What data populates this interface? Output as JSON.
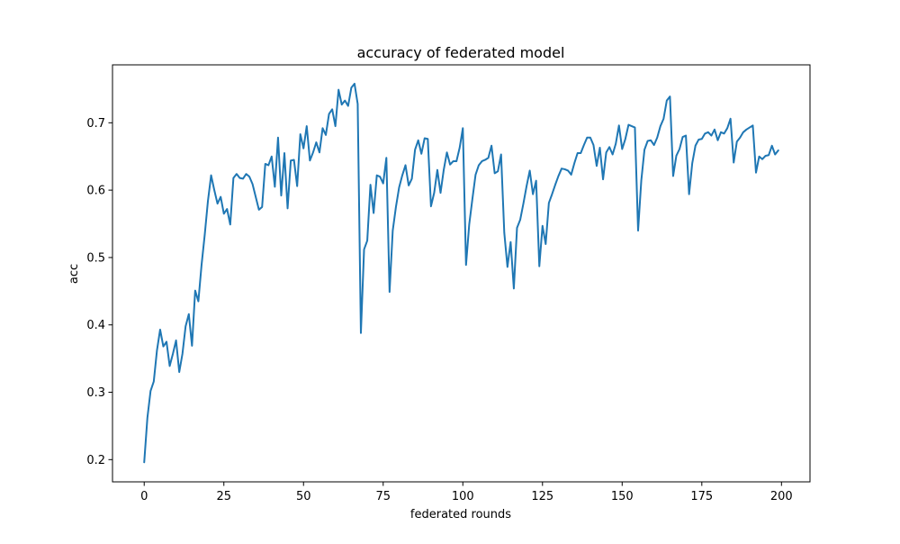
{
  "chart_data": {
    "type": "line",
    "title": "accuracy of federated model",
    "xlabel": "federated rounds",
    "ylabel": "acc",
    "xlim": [
      -9.95,
      208.95
    ],
    "ylim": [
      0.167,
      0.786
    ],
    "xticks": [
      0,
      25,
      50,
      75,
      100,
      125,
      150,
      175,
      200
    ],
    "yticks": [
      0.2,
      0.3,
      0.4,
      0.5,
      0.6,
      0.7
    ],
    "ytick_labels": [
      "0.2",
      "0.3",
      "0.4",
      "0.5",
      "0.6",
      "0.7"
    ],
    "grid": false,
    "line_color": "#1f77b4",
    "series": [
      {
        "values": [
          0.196,
          0.262,
          0.302,
          0.316,
          0.362,
          0.393,
          0.368,
          0.375,
          0.339,
          0.357,
          0.377,
          0.33,
          0.357,
          0.398,
          0.416,
          0.369,
          0.451,
          0.435,
          0.489,
          0.534,
          0.584,
          0.622,
          0.6,
          0.58,
          0.59,
          0.565,
          0.572,
          0.549,
          0.618,
          0.624,
          0.618,
          0.617,
          0.624,
          0.62,
          0.609,
          0.59,
          0.571,
          0.575,
          0.639,
          0.637,
          0.65,
          0.605,
          0.678,
          0.592,
          0.655,
          0.573,
          0.644,
          0.645,
          0.606,
          0.683,
          0.662,
          0.695,
          0.644,
          0.656,
          0.671,
          0.656,
          0.692,
          0.682,
          0.713,
          0.72,
          0.695,
          0.749,
          0.727,
          0.733,
          0.725,
          0.752,
          0.758,
          0.728,
          0.388,
          0.512,
          0.525,
          0.608,
          0.566,
          0.622,
          0.62,
          0.61,
          0.648,
          0.449,
          0.54,
          0.575,
          0.604,
          0.622,
          0.637,
          0.607,
          0.617,
          0.66,
          0.674,
          0.654,
          0.677,
          0.676,
          0.576,
          0.596,
          0.63,
          0.596,
          0.63,
          0.656,
          0.638,
          0.643,
          0.643,
          0.663,
          0.692,
          0.489,
          0.549,
          0.587,
          0.623,
          0.637,
          0.643,
          0.645,
          0.648,
          0.666,
          0.625,
          0.628,
          0.653,
          0.537,
          0.486,
          0.523,
          0.454,
          0.544,
          0.556,
          0.58,
          0.606,
          0.629,
          0.594,
          0.614,
          0.487,
          0.547,
          0.52,
          0.581,
          0.594,
          0.608,
          0.621,
          0.632,
          0.631,
          0.629,
          0.623,
          0.64,
          0.655,
          0.655,
          0.667,
          0.678,
          0.678,
          0.667,
          0.636,
          0.663,
          0.616,
          0.656,
          0.664,
          0.653,
          0.669,
          0.696,
          0.661,
          0.676,
          0.697,
          0.695,
          0.693,
          0.54,
          0.614,
          0.66,
          0.673,
          0.674,
          0.667,
          0.678,
          0.695,
          0.706,
          0.733,
          0.739,
          0.621,
          0.651,
          0.661,
          0.679,
          0.681,
          0.594,
          0.64,
          0.666,
          0.675,
          0.676,
          0.684,
          0.686,
          0.681,
          0.69,
          0.674,
          0.686,
          0.684,
          0.692,
          0.706,
          0.641,
          0.672,
          0.678,
          0.686,
          0.69,
          0.693,
          0.696,
          0.626,
          0.65,
          0.646,
          0.651,
          0.652,
          0.666,
          0.653,
          0.659
        ]
      }
    ]
  }
}
